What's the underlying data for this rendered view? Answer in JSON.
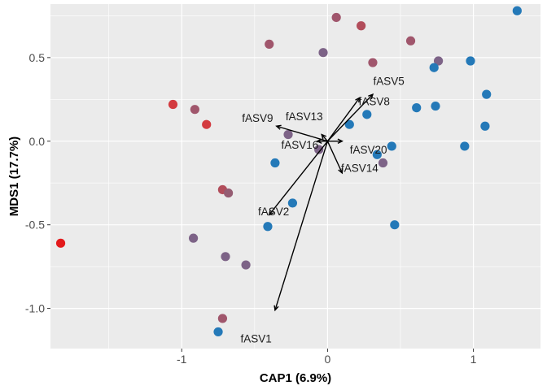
{
  "chart_data": {
    "type": "scatter",
    "title": "",
    "xlabel": "CAP1 (6.9%)",
    "ylabel": "MDS1 (17.7%)",
    "xlim": [
      -1.9,
      1.46
    ],
    "ylim": [
      -1.24,
      0.82
    ],
    "x_ticks": [
      -1,
      0,
      1
    ],
    "x_tick_labels": [
      "-1",
      "0",
      "1"
    ],
    "y_ticks": [
      -1.0,
      -0.5,
      0.0,
      0.5
    ],
    "y_tick_labels": [
      "-1.0",
      "-0.5",
      "0.0",
      "0.5"
    ],
    "grid": true,
    "panel_background": "#ebebeb",
    "grid_color": "#ffffff",
    "points": [
      {
        "x": -1.83,
        "y": -0.61,
        "color": "#e31a1c"
      },
      {
        "x": -1.06,
        "y": 0.22,
        "color": "#d33a3f"
      },
      {
        "x": -0.83,
        "y": 0.1,
        "color": "#d33a3f"
      },
      {
        "x": -0.91,
        "y": 0.19,
        "color": "#a0566c"
      },
      {
        "x": -0.72,
        "y": -0.29,
        "color": "#b24d5b"
      },
      {
        "x": -0.68,
        "y": -0.31,
        "color": "#955c72"
      },
      {
        "x": -0.92,
        "y": -0.58,
        "color": "#7d6387"
      },
      {
        "x": -0.7,
        "y": -0.69,
        "color": "#7d6387"
      },
      {
        "x": -0.56,
        "y": -0.74,
        "color": "#7d6387"
      },
      {
        "x": -0.72,
        "y": -1.06,
        "color": "#a0566c"
      },
      {
        "x": -0.75,
        "y": -1.14,
        "color": "#2479b8"
      },
      {
        "x": -0.4,
        "y": 0.58,
        "color": "#a0566c"
      },
      {
        "x": -0.03,
        "y": 0.53,
        "color": "#7d6387"
      },
      {
        "x": 0.06,
        "y": 0.74,
        "color": "#a0566c"
      },
      {
        "x": 0.23,
        "y": 0.69,
        "color": "#b24d5b"
      },
      {
        "x": 0.57,
        "y": 0.6,
        "color": "#a0566c"
      },
      {
        "x": 0.76,
        "y": 0.48,
        "color": "#7d6387"
      },
      {
        "x": 0.31,
        "y": 0.47,
        "color": "#a0566c"
      },
      {
        "x": 1.3,
        "y": 0.78,
        "color": "#2479b8"
      },
      {
        "x": 0.98,
        "y": 0.48,
        "color": "#2479b8"
      },
      {
        "x": 0.73,
        "y": 0.44,
        "color": "#2479b8"
      },
      {
        "x": 1.09,
        "y": 0.28,
        "color": "#2479b8"
      },
      {
        "x": 0.61,
        "y": 0.2,
        "color": "#2479b8"
      },
      {
        "x": 0.74,
        "y": 0.21,
        "color": "#2479b8"
      },
      {
        "x": 0.27,
        "y": 0.16,
        "color": "#2479b8"
      },
      {
        "x": 1.08,
        "y": 0.09,
        "color": "#2479b8"
      },
      {
        "x": 0.15,
        "y": 0.1,
        "color": "#2479b8"
      },
      {
        "x": 0.94,
        "y": -0.03,
        "color": "#2479b8"
      },
      {
        "x": 0.44,
        "y": -0.03,
        "color": "#2479b8"
      },
      {
        "x": 0.34,
        "y": -0.08,
        "color": "#2479b8"
      },
      {
        "x": 0.38,
        "y": -0.13,
        "color": "#7d6387"
      },
      {
        "x": -0.27,
        "y": 0.04,
        "color": "#7d6387"
      },
      {
        "x": -0.06,
        "y": -0.05,
        "color": "#7d6387"
      },
      {
        "x": -0.36,
        "y": -0.13,
        "color": "#2479b8"
      },
      {
        "x": -0.24,
        "y": -0.37,
        "color": "#2479b8"
      },
      {
        "x": -0.41,
        "y": -0.51,
        "color": "#2479b8"
      },
      {
        "x": 0.46,
        "y": -0.5,
        "color": "#2479b8"
      }
    ],
    "vectors": [
      {
        "name": "fASV1",
        "x": -0.36,
        "y": -1.01,
        "label_x": -0.49,
        "label_y": -1.18
      },
      {
        "name": "fASV2",
        "x": -0.4,
        "y": -0.44,
        "label_x": -0.37,
        "label_y": -0.42
      },
      {
        "name": "fASV5",
        "x": 0.31,
        "y": 0.28,
        "label_x": 0.42,
        "label_y": 0.36
      },
      {
        "name": "fASV8",
        "x": 0.22,
        "y": 0.26,
        "label_x": 0.32,
        "label_y": 0.24
      },
      {
        "name": "fASV9",
        "x": -0.35,
        "y": 0.09,
        "label_x": -0.48,
        "label_y": 0.14
      },
      {
        "name": "fASV13",
        "x": -0.04,
        "y": 0.04,
        "label_x": -0.16,
        "label_y": 0.15
      },
      {
        "name": "fASV14",
        "x": 0.1,
        "y": -0.19,
        "label_x": 0.22,
        "label_y": -0.16
      },
      {
        "name": "fASV16",
        "x": -0.07,
        "y": 0.0,
        "label_x": -0.19,
        "label_y": -0.02
      },
      {
        "name": "fASV20",
        "x": 0.1,
        "y": 0.0,
        "label_x": 0.28,
        "label_y": -0.05
      }
    ]
  }
}
